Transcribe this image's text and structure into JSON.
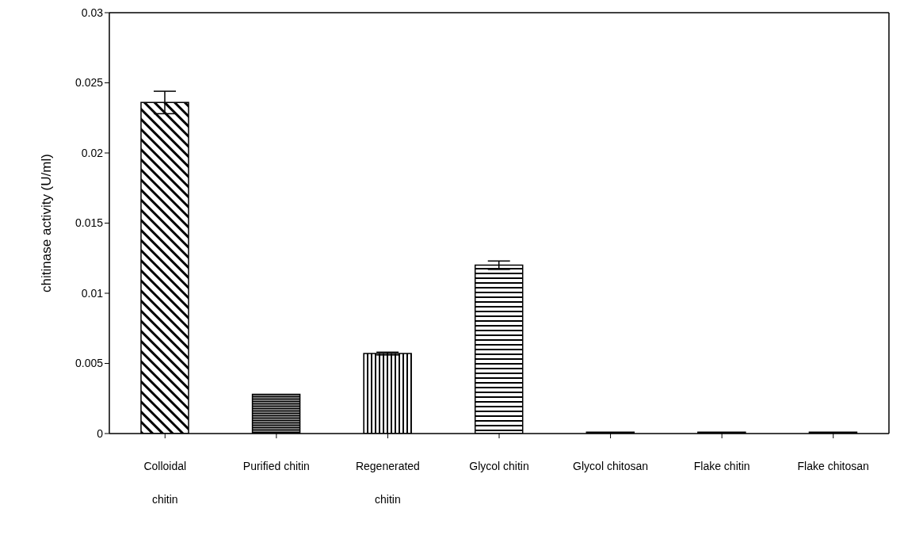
{
  "chart_data": {
    "type": "bar",
    "ylabel": "chitinase activity (U/ml)",
    "categories": [
      "Colloidal chitin",
      "Purified chitin",
      "Regenerated chitin",
      "Glycol chitin",
      "Glycol chitosan",
      "Flake chitin",
      "Flake chitosan"
    ],
    "values": [
      0.0236,
      0.0028,
      0.0057,
      0.012,
      0.0001,
      0.0001,
      0.0001
    ],
    "errors": [
      0.0008,
      null,
      0.0001,
      0.0003,
      null,
      null,
      null
    ],
    "color": "#000000",
    "ylim": [
      0,
      0.03
    ],
    "yticks": [
      0,
      0.005,
      0.01,
      0.015,
      0.02,
      0.025,
      0.03
    ],
    "grid": false
  }
}
